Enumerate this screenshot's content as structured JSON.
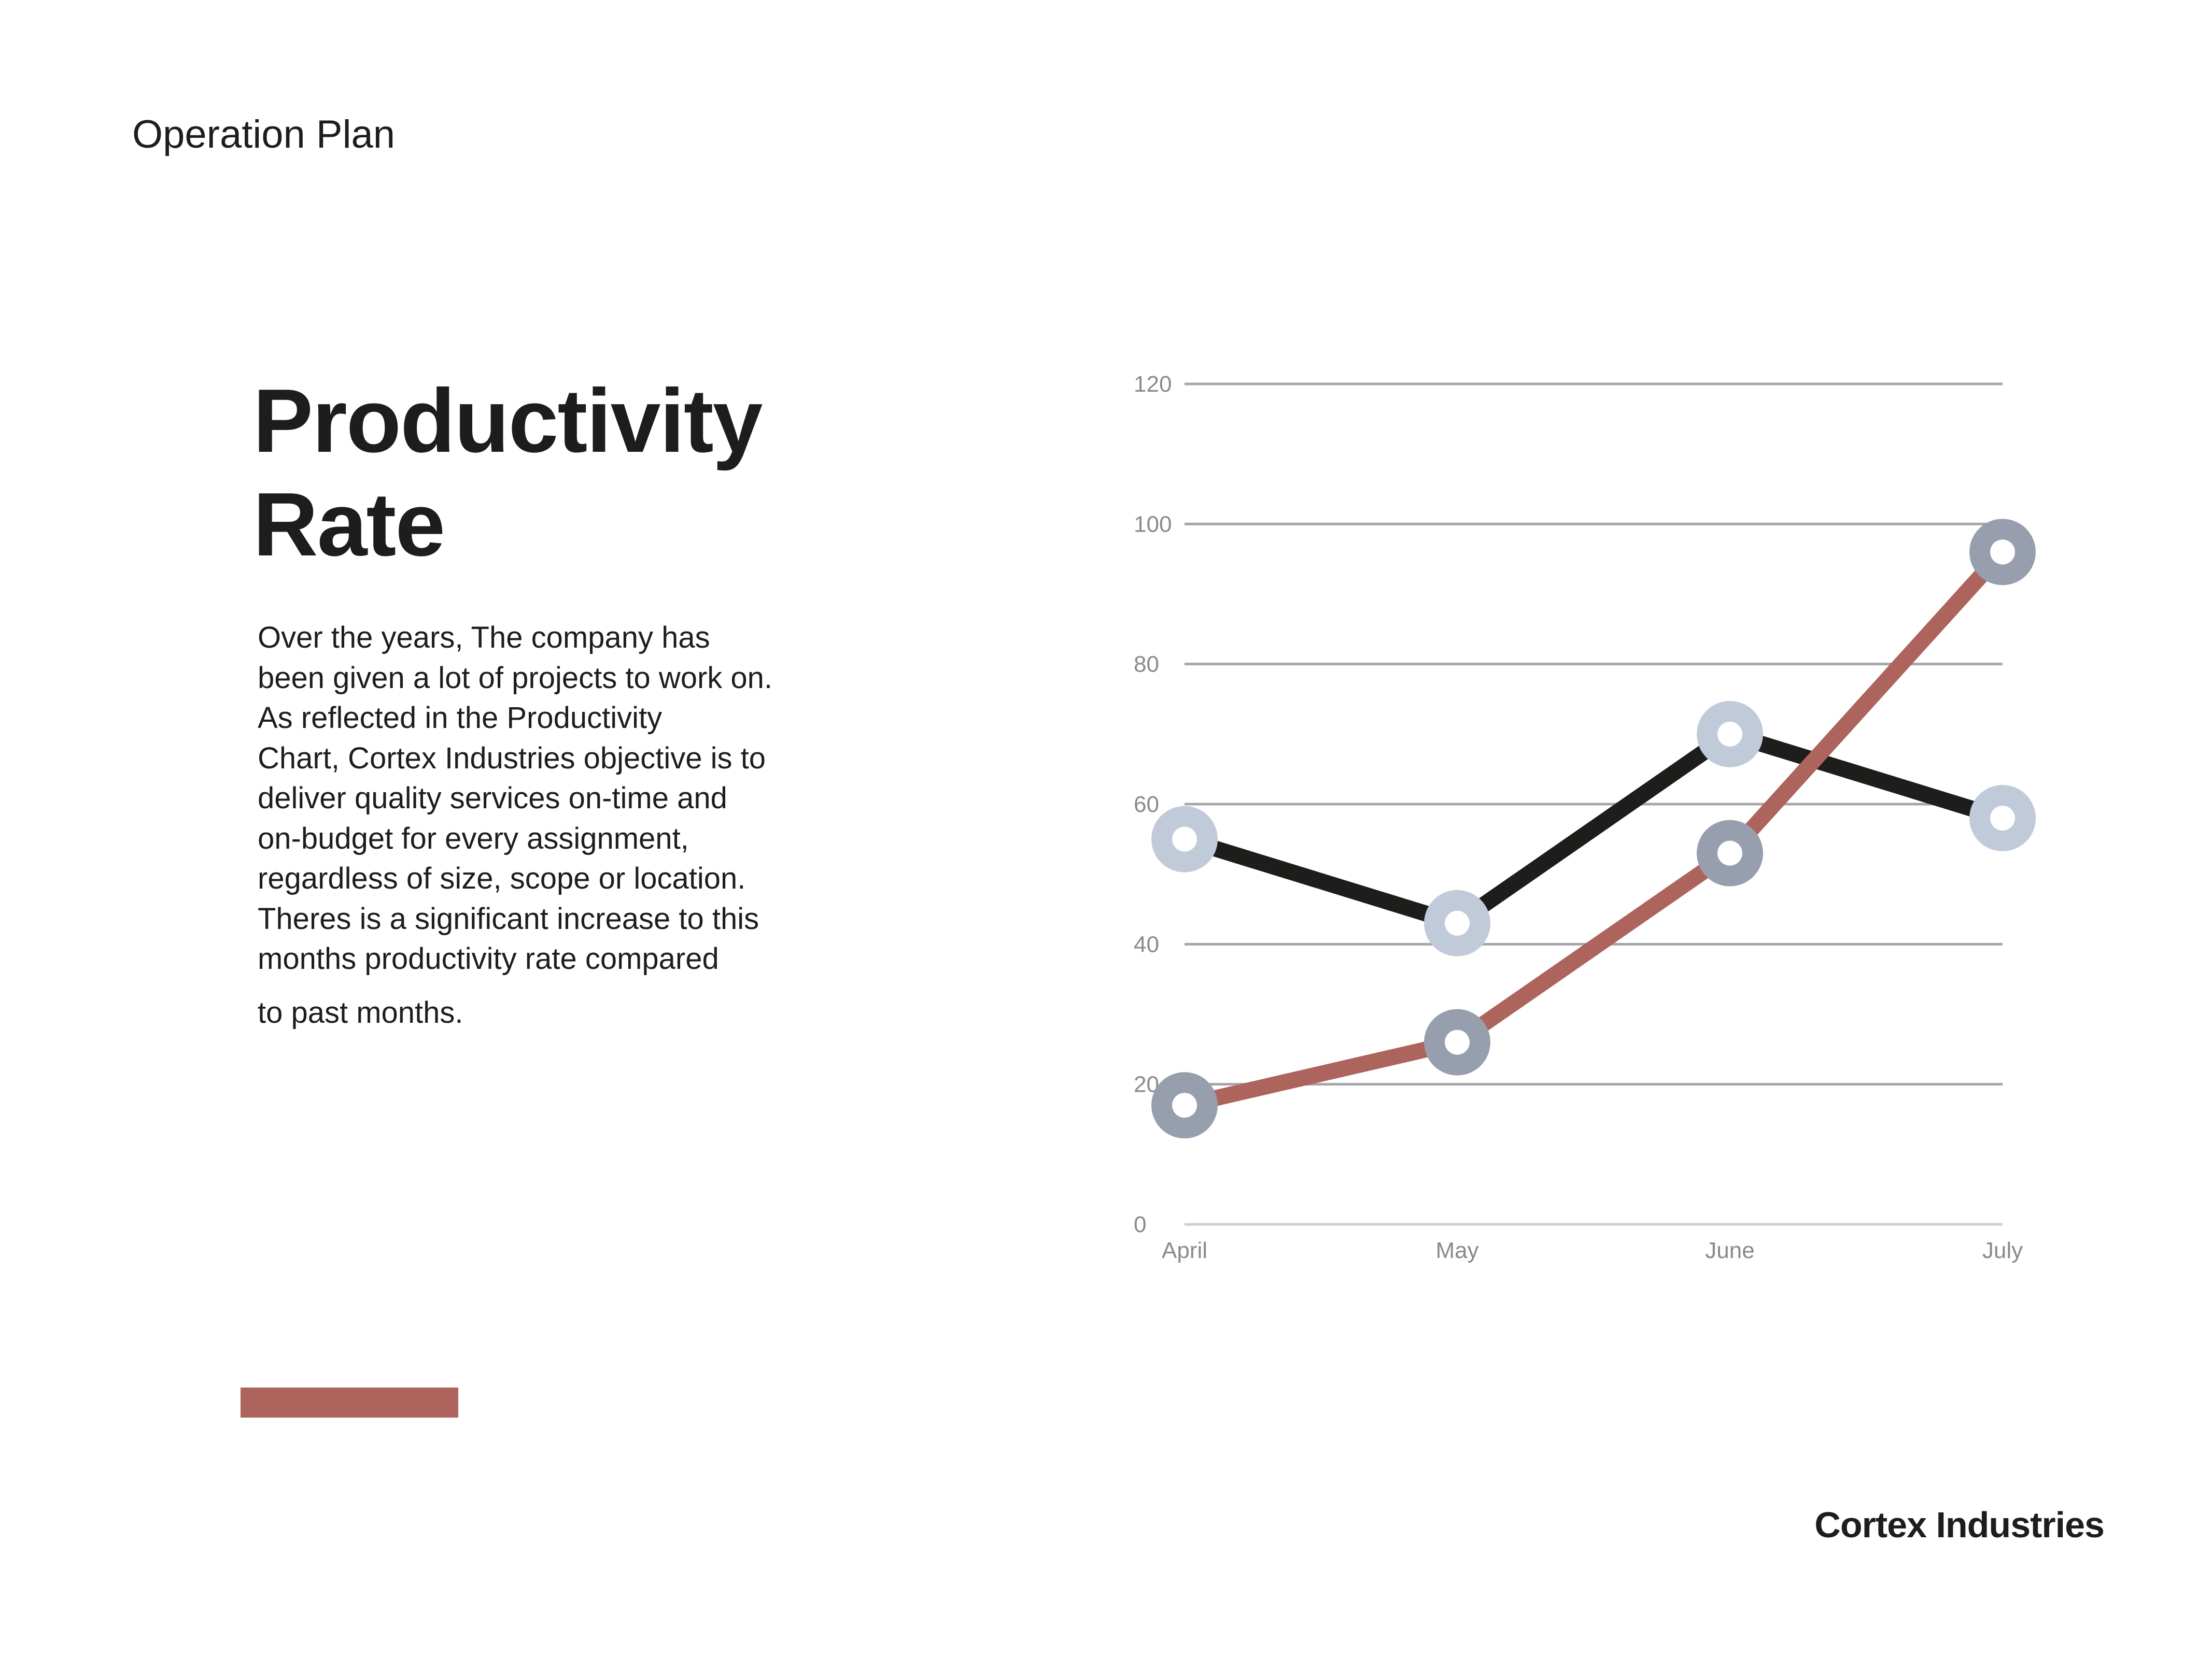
{
  "header": {
    "title": "Operation Plan"
  },
  "heading": {
    "line1": "Productivity",
    "line2": "Rate"
  },
  "body": {
    "lines": [
      "Over the years, The company has",
      "been given a lot of projects to work on.",
      "As reflected in the Productivity",
      "Chart, Cortex Industries objective is to",
      "deliver quality services on-time and",
      "on-budget for every assignment,",
      "regardless of size, scope or location.",
      "Theres is a significant increase to this",
      "months productivity rate compared",
      "to past months."
    ]
  },
  "footer": {
    "brand": "Cortex Industries"
  },
  "colors": {
    "accent": "#ac645d",
    "text": "#1d1d1b",
    "grid": "#a6a6a6",
    "marker_light": "#c1cad8",
    "marker_dark": "#979ead"
  },
  "chart_data": {
    "type": "line",
    "categories": [
      "April",
      "May",
      "June",
      "July"
    ],
    "ylim": [
      0,
      120
    ],
    "yticks": [
      0,
      20,
      40,
      60,
      80,
      100,
      120
    ],
    "grid": true,
    "legend": "none",
    "title": "",
    "xlabel": "",
    "ylabel": "",
    "series": [
      {
        "values": [
          55,
          43,
          70,
          58
        ],
        "color": "#1d1d1b",
        "marker_color": "#c1cad8"
      },
      {
        "values": [
          17,
          26,
          53,
          96
        ],
        "color": "#ac645d",
        "marker_color": "#979ead"
      }
    ]
  }
}
